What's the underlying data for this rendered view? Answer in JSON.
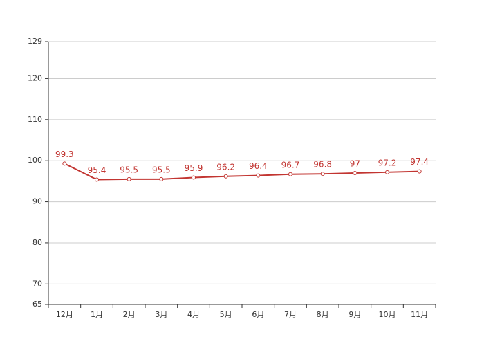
{
  "chart_data": {
    "type": "line",
    "categories": [
      "12月",
      "1月",
      "2月",
      "3月",
      "4月",
      "5月",
      "6月",
      "7月",
      "8月",
      "9月",
      "10月",
      "11月"
    ],
    "series": [
      {
        "color": "#c23531",
        "values": [
          99.3,
          95.4,
          95.5,
          95.5,
          95.9,
          96.2,
          96.4,
          96.7,
          96.8,
          97,
          97.2,
          97.4
        ]
      }
    ],
    "ylim": [
      65,
      129
    ],
    "yticks": [
      65,
      70,
      80,
      90,
      100,
      110,
      120,
      129
    ],
    "grid": true
  }
}
